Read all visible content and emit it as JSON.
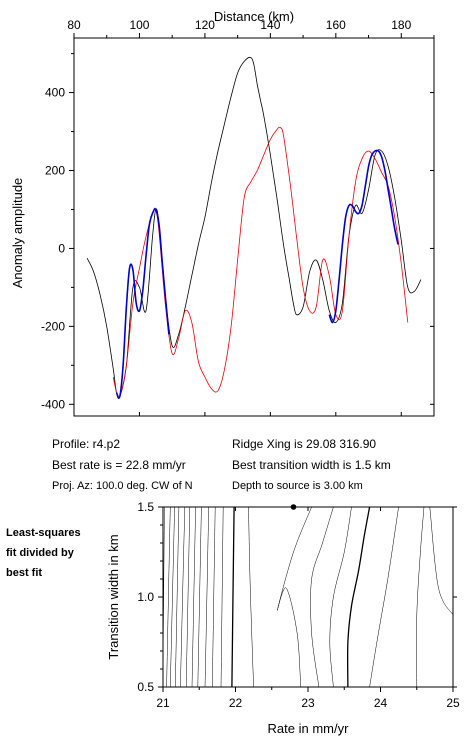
{
  "chart_data": [
    {
      "type": "line",
      "title": "",
      "xlabel": "Distance (km)",
      "ylabel": "Anomaly amplitude",
      "xlim": [
        80,
        190
      ],
      "ylim": [
        -430,
        540
      ],
      "xticks": [
        80,
        100,
        120,
        140,
        160,
        180
      ],
      "yticks": [
        -400,
        -200,
        0,
        200,
        400
      ],
      "x_axis_position": "top",
      "grid": false,
      "legend": "none",
      "series": [
        {
          "color": "#000000",
          "width": 0.8,
          "x": [
            84,
            86,
            88,
            90,
            92,
            93,
            94,
            96,
            98,
            100,
            102,
            104,
            105,
            106,
            108,
            110,
            112,
            114,
            116,
            118,
            120,
            122,
            124,
            126,
            128,
            130,
            132,
            134,
            135,
            136,
            137,
            138,
            140,
            142,
            144,
            146,
            147,
            148,
            150,
            152,
            154,
            156,
            158,
            160,
            162,
            164,
            166,
            168,
            170,
            172,
            174,
            176,
            178,
            180,
            182,
            184,
            186
          ],
          "y": [
            -25,
            -60,
            -120,
            -200,
            -310,
            -370,
            -380,
            -300,
            -100,
            -100,
            -160,
            30,
            100,
            60,
            -130,
            -250,
            -220,
            -150,
            -70,
            10,
            80,
            170,
            250,
            320,
            390,
            450,
            480,
            490,
            470,
            420,
            380,
            340,
            240,
            130,
            10,
            -90,
            -140,
            -170,
            -150,
            -60,
            -30,
            -80,
            -160,
            -190,
            -140,
            30,
            110,
            90,
            150,
            240,
            250,
            210,
            130,
            20,
            -100,
            -110,
            -80
          ]
        },
        {
          "color": "#e8000b",
          "width": 0.8,
          "x": [
            92,
            93,
            94,
            96,
            98,
            100,
            102,
            104,
            105,
            106,
            108,
            110,
            112,
            114,
            116,
            118,
            120,
            122,
            124,
            126,
            128,
            130,
            132,
            134,
            136,
            138,
            140,
            142,
            143,
            144,
            146,
            148,
            150,
            152,
            154,
            156,
            158,
            160,
            162,
            164,
            166,
            168,
            170,
            172,
            174,
            176,
            178,
            180,
            182
          ],
          "y": [
            -330,
            -370,
            -380,
            -300,
            -140,
            -50,
            30,
            90,
            100,
            40,
            -150,
            -270,
            -230,
            -160,
            -190,
            -290,
            -330,
            -360,
            -365,
            -310,
            -200,
            -30,
            130,
            170,
            200,
            240,
            280,
            305,
            310,
            290,
            170,
            30,
            -100,
            -160,
            -150,
            -30,
            -70,
            -170,
            -160,
            30,
            170,
            230,
            250,
            230,
            195,
            160,
            80,
            -40,
            -190
          ]
        },
        {
          "color": "#0000cc",
          "width": 1.6,
          "x": [
            93,
            94,
            95,
            96,
            97,
            98,
            99,
            100,
            101,
            102,
            103,
            104,
            105,
            106,
            107,
            108,
            109
          ],
          "y": [
            -370,
            -380,
            -300,
            -150,
            -50,
            -55,
            -140,
            -160,
            -110,
            -20,
            60,
            90,
            100,
            60,
            -40,
            -130,
            -220
          ]
        },
        {
          "color": "#0000cc",
          "width": 1.6,
          "x": [
            158,
            159,
            160,
            161,
            162,
            163,
            164,
            165,
            166,
            167,
            168,
            169,
            170,
            171,
            172,
            173,
            174,
            175,
            176,
            177,
            178,
            179
          ],
          "y": [
            -170,
            -190,
            -160,
            -80,
            10,
            80,
            110,
            110,
            95,
            90,
            110,
            160,
            210,
            240,
            250,
            250,
            235,
            200,
            150,
            100,
            50,
            10
          ]
        }
      ]
    },
    {
      "type": "contour",
      "title": "",
      "xlabel": "Rate in mm/yr",
      "ylabel": "Transition width in km",
      "xlim": [
        21,
        25
      ],
      "ylim": [
        0.5,
        1.5
      ],
      "xticks": [
        21,
        22,
        23,
        24,
        25
      ],
      "yticks": [
        0.5,
        1.0,
        1.5
      ],
      "grid": false,
      "legend": "none",
      "best_fit_point": {
        "x": 22.8,
        "y": 1.5
      },
      "contours": [
        {
          "heavy": false,
          "x": [
            21.0,
            21.02
          ],
          "y": [
            0.58,
            1.5
          ]
        },
        {
          "heavy": false,
          "x": [
            21.05,
            21.1
          ],
          "y": [
            0.5,
            1.5
          ]
        },
        {
          "heavy": false,
          "x": [
            21.1,
            21.16
          ],
          "y": [
            0.5,
            1.5
          ]
        },
        {
          "heavy": false,
          "x": [
            21.17,
            21.22
          ],
          "y": [
            0.5,
            1.5
          ]
        },
        {
          "heavy": false,
          "x": [
            21.24,
            21.3
          ],
          "y": [
            0.5,
            1.5
          ]
        },
        {
          "heavy": false,
          "x": [
            21.32,
            21.37
          ],
          "y": [
            0.5,
            1.5
          ]
        },
        {
          "heavy": false,
          "x": [
            21.4,
            21.45
          ],
          "y": [
            0.5,
            1.5
          ]
        },
        {
          "heavy": false,
          "x": [
            21.48,
            21.53
          ],
          "y": [
            0.5,
            1.5
          ]
        },
        {
          "heavy": false,
          "x": [
            21.58,
            21.63
          ],
          "y": [
            0.5,
            1.5
          ]
        },
        {
          "heavy": false,
          "x": [
            21.68,
            21.72
          ],
          "y": [
            0.5,
            1.5
          ]
        },
        {
          "heavy": false,
          "x": [
            21.8,
            21.83
          ],
          "y": [
            0.5,
            1.5
          ]
        },
        {
          "heavy": true,
          "x": [
            21.95,
            21.98
          ],
          "y": [
            0.5,
            1.5
          ]
        },
        {
          "heavy": false,
          "x": [
            22.25,
            22.2,
            22.18
          ],
          "y": [
            0.5,
            1.1,
            1.5
          ]
        },
        {
          "heavy": false,
          "x": [
            22.9,
            22.85,
            22.7,
            22.58,
            22.8,
            23.05
          ],
          "y": [
            0.5,
            0.8,
            1.05,
            0.93,
            1.25,
            1.5
          ]
        },
        {
          "heavy": false,
          "x": [
            23.15,
            23.05,
            23.05,
            23.2,
            23.35
          ],
          "y": [
            0.5,
            0.8,
            1.1,
            1.3,
            1.5
          ]
        },
        {
          "heavy": false,
          "x": [
            23.35,
            23.3,
            23.35,
            23.5,
            23.6
          ],
          "y": [
            0.5,
            0.75,
            1.0,
            1.25,
            1.5
          ]
        },
        {
          "heavy": true,
          "x": [
            23.55,
            23.55,
            23.6,
            23.7,
            23.78,
            23.85
          ],
          "y": [
            0.5,
            0.75,
            0.95,
            1.15,
            1.35,
            1.5
          ]
        },
        {
          "heavy": false,
          "x": [
            23.85,
            23.95,
            24.1,
            24.25
          ],
          "y": [
            0.5,
            0.75,
            1.1,
            1.5
          ]
        },
        {
          "heavy": false,
          "x": [
            24.5,
            24.5,
            24.55,
            24.6
          ],
          "y": [
            0.5,
            0.9,
            1.25,
            1.5
          ]
        },
        {
          "heavy": false,
          "x": [
            25.0,
            24.8,
            24.68
          ],
          "y": [
            0.9,
            1.05,
            1.5
          ]
        }
      ]
    }
  ],
  "info": {
    "profile": "Profile: r4.p2",
    "best_rate": "Best rate is = 22.8 mm/yr",
    "proj_az": "Proj. Az: 100.0 deg. CW of N",
    "ridge_xing": "Ridge Xing is 29.08 316.90",
    "best_width": "Best transition width is 1.5 km",
    "depth": "Depth to source is   3.00 km"
  },
  "side_note": {
    "line1": "Least-squares",
    "line2": "fit divided by",
    "line3": "best fit"
  }
}
